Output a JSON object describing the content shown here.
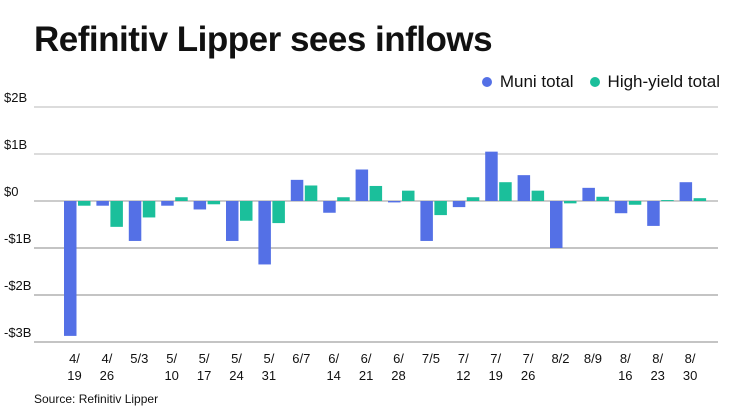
{
  "header": {
    "title": "Refinitiv Lipper sees inflows"
  },
  "footer": {
    "source": "Source: Refinitiv Lipper"
  },
  "colors": {
    "muni": "#5470e6",
    "high_yield": "#1bbf9b",
    "grid": "#c8c8c8",
    "zero": "#999999"
  },
  "chart_data": {
    "type": "bar",
    "title": "Refinitiv Lipper sees inflows",
    "xlabel": "",
    "ylabel": "",
    "ylim": [
      -3,
      2
    ],
    "yticks": [
      2,
      1,
      0,
      -1,
      -2,
      -3
    ],
    "ytick_labels": [
      "$2B",
      "$1B",
      "$0",
      "-$1B",
      "-$2B",
      "-$3B"
    ],
    "grid": true,
    "legend_position": "top-right",
    "categories": [
      "4/19",
      "4/26",
      "5/3",
      "5/10",
      "5/17",
      "5/24",
      "5/31",
      "6/7",
      "6/14",
      "6/21",
      "6/28",
      "7/5",
      "7/12",
      "7/19",
      "7/26",
      "8/2",
      "8/9",
      "8/16",
      "8/23",
      "8/30"
    ],
    "category_labels": [
      [
        "4/",
        "19"
      ],
      [
        "4/",
        "26"
      ],
      [
        "5/3"
      ],
      [
        "5/",
        "10"
      ],
      [
        "5/",
        "17"
      ],
      [
        "5/",
        "24"
      ],
      [
        "5/",
        "31"
      ],
      [
        "6/7"
      ],
      [
        "6/",
        "14"
      ],
      [
        "6/",
        "21"
      ],
      [
        "6/",
        "28"
      ],
      [
        "7/5"
      ],
      [
        "7/",
        "12"
      ],
      [
        "7/",
        "19"
      ],
      [
        "7/",
        "26"
      ],
      [
        "8/2"
      ],
      [
        "8/9"
      ],
      [
        "8/",
        "16"
      ],
      [
        "8/",
        "23"
      ],
      [
        "8/",
        "30"
      ]
    ],
    "units": "$B",
    "series": [
      {
        "name": "Muni total",
        "values": [
          -2.87,
          -0.1,
          -0.85,
          -0.1,
          -0.18,
          -0.85,
          -1.35,
          0.45,
          -0.25,
          0.67,
          -0.03,
          -0.85,
          -0.13,
          1.05,
          0.55,
          -1.0,
          0.28,
          -0.26,
          -0.53,
          0.4
        ]
      },
      {
        "name": "High-yield total",
        "values": [
          -0.1,
          -0.55,
          -0.35,
          0.08,
          -0.07,
          -0.42,
          -0.47,
          0.33,
          0.08,
          0.32,
          0.22,
          -0.3,
          0.08,
          0.4,
          0.22,
          -0.05,
          0.09,
          -0.08,
          0.02,
          0.06
        ]
      }
    ]
  }
}
